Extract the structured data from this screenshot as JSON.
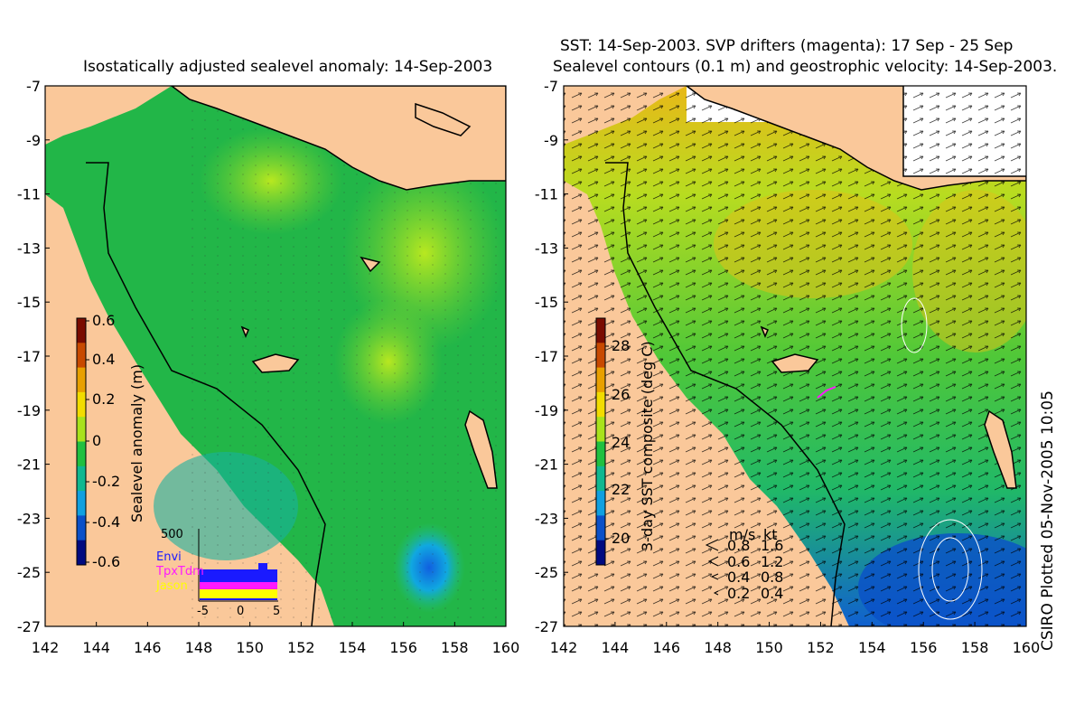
{
  "left_panel": {
    "title": "Isostatically adjusted sealevel anomaly: 14-Sep-2003",
    "colorbar": {
      "label": "Sealevel anomaly (m)",
      "ticks": [
        "0.6",
        "0.4",
        "0.2",
        "0",
        "-0.2",
        "-0.4",
        "-0.6"
      ],
      "colors": [
        "#7a0c00",
        "#c84a00",
        "#e8a000",
        "#f2dc00",
        "#a8e21c",
        "#20c040",
        "#10b890",
        "#10a0e0",
        "#0a50c8",
        "#000a80"
      ]
    },
    "inset": {
      "ymax_label": "500",
      "legend": [
        {
          "label": "Envi",
          "color": "#1a1aff"
        },
        {
          "label": "TpxTdm",
          "color": "#ff19ff"
        },
        {
          "label": "Jason",
          "color": "#ffff00"
        }
      ],
      "xticks": [
        "-5",
        "0",
        "5"
      ]
    }
  },
  "right_panel": {
    "title_line1": "SST: 14-Sep-2003. SVP drifters (magenta): 17 Sep - 25 Sep",
    "title_line2": "Sealevel contours (0.1 m) and geostrophic velocity: 14-Sep-2003.",
    "colorbar": {
      "label": "3-day SST composite (deg C)",
      "ticks": [
        "28",
        "26",
        "24",
        "22",
        "20"
      ],
      "colors": [
        "#7a0c00",
        "#c84a00",
        "#e8a000",
        "#f2dc00",
        "#a8e21c",
        "#20c040",
        "#10b890",
        "#10a0e0",
        "#0a50c8",
        "#000a80"
      ]
    },
    "speed_legend": {
      "header_ms": "m/s",
      "header_kt": "kt",
      "rows": [
        {
          "ms": "0.8",
          "kt": "1.6"
        },
        {
          "ms": "0.6",
          "kt": "1.2"
        },
        {
          "ms": "0.4",
          "kt": "0.8"
        },
        {
          "ms": "0.2",
          "kt": "0.4"
        }
      ]
    }
  },
  "axes": {
    "lon_ticks": [
      "142",
      "144",
      "146",
      "148",
      "150",
      "152",
      "154",
      "156",
      "158",
      "160"
    ],
    "lat_ticks": [
      "-7",
      "-9",
      "-11",
      "-13",
      "-15",
      "-17",
      "-19",
      "-21",
      "-23",
      "-25",
      "-27"
    ]
  },
  "credit": "CSIRO Plotted 05-Nov-2005 10:05",
  "colors": {
    "land": "#fac89a",
    "coast": "#000000",
    "ocean_sla": "#22b648",
    "ocean_sst": "#3cc23c"
  }
}
